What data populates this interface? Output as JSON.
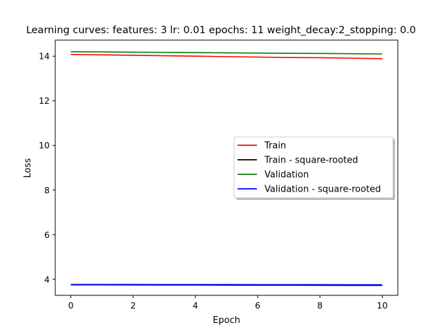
{
  "chart_data": {
    "type": "line",
    "title": "Learning curves: features: 3 lr: 0.01 epochs: 11 weight_decay:2_stopping: 0.0",
    "xlabel": "Epoch",
    "ylabel": "Loss",
    "xlim": [
      -0.5,
      10.5
    ],
    "ylim": [
      3.28,
      14.72
    ],
    "xticks": [
      0,
      2,
      4,
      6,
      8,
      10
    ],
    "yticks": [
      4,
      6,
      8,
      10,
      12,
      14
    ],
    "grid": false,
    "legend_position": "center-right",
    "x": [
      0,
      1,
      2,
      3,
      4,
      5,
      6,
      7,
      8,
      9,
      10
    ],
    "series": [
      {
        "name": "Train",
        "color": "#ff0000",
        "values": [
          14.08,
          14.06,
          14.04,
          14.02,
          14.0,
          13.98,
          13.96,
          13.94,
          13.93,
          13.91,
          13.89
        ]
      },
      {
        "name": "Train - square-rooted",
        "color": "#000000",
        "values": [
          3.752,
          3.75,
          3.747,
          3.744,
          3.742,
          3.739,
          3.736,
          3.734,
          3.731,
          3.729,
          3.727
        ]
      },
      {
        "name": "Validation",
        "color": "#008000",
        "values": [
          14.2,
          14.19,
          14.18,
          14.17,
          14.16,
          14.15,
          14.14,
          14.13,
          14.12,
          14.11,
          14.1
        ]
      },
      {
        "name": "Validation - square-rooted",
        "color": "#0000ff",
        "values": [
          3.768,
          3.767,
          3.765,
          3.764,
          3.763,
          3.762,
          3.76,
          3.759,
          3.758,
          3.756,
          3.755
        ]
      }
    ]
  }
}
